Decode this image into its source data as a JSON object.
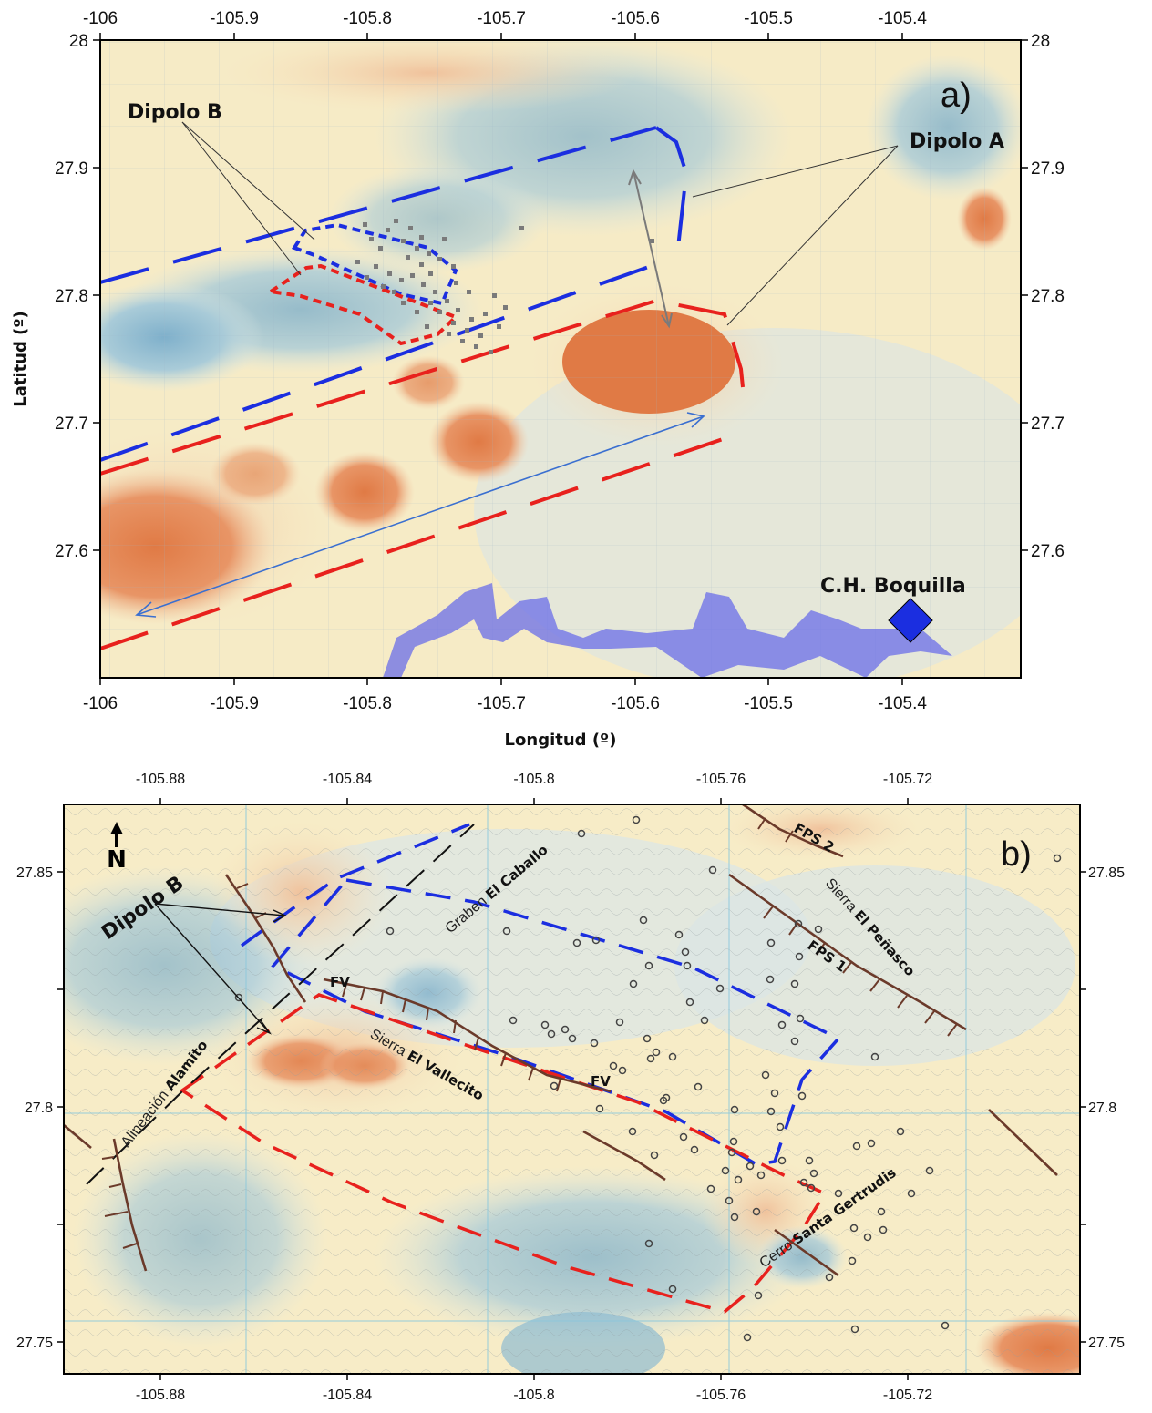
{
  "panel_a": {
    "panel_label": "a)",
    "x_ticks": [
      "-106",
      "-105.9",
      "-105.8",
      "-105.7",
      "-105.6",
      "-105.5",
      "-105.4"
    ],
    "y_ticks": [
      "28",
      "27.9",
      "27.8",
      "27.7",
      "27.6"
    ],
    "x_axis_label": "Longitud (º)",
    "y_axis_label": "Latitud (º)",
    "dipolo_a": "Dipolo A",
    "dipolo_b": "Dipolo B",
    "station": "C.H. Boquilla"
  },
  "panel_b": {
    "panel_label": "b)",
    "x_ticks": [
      "-105.88",
      "-105.84",
      "-105.8",
      "-105.76",
      "-105.72"
    ],
    "y_ticks": [
      "27.85",
      "27.8",
      "27.75"
    ],
    "north": "N",
    "dipolo_b": "Dipolo B",
    "labels": {
      "graben_prefix": "Graben ",
      "graben_name": "El Caballo",
      "sierra_pen_prefix": "Sierra ",
      "sierra_pen_name": "El Peñasco",
      "fps1": "FPS 1",
      "fps2": "FPS 2",
      "fv_1": "FV",
      "fv_2": "FV",
      "sierra_val_prefix": "Sierra ",
      "sierra_val_name": "El Vallecito",
      "alin_prefix": "Alineación ",
      "alin_name": "Alamito",
      "cerro_prefix": "Cerro ",
      "cerro_name": "Santa Gertrudis"
    }
  },
  "colors": {
    "red_dash": "#e8211d",
    "blue_dash": "#1b2ee0",
    "river": "#6a6ee8",
    "anomaly_high": "#e4824e",
    "anomaly_low": "#8fbcd1",
    "fault": "#6b3a2a"
  }
}
